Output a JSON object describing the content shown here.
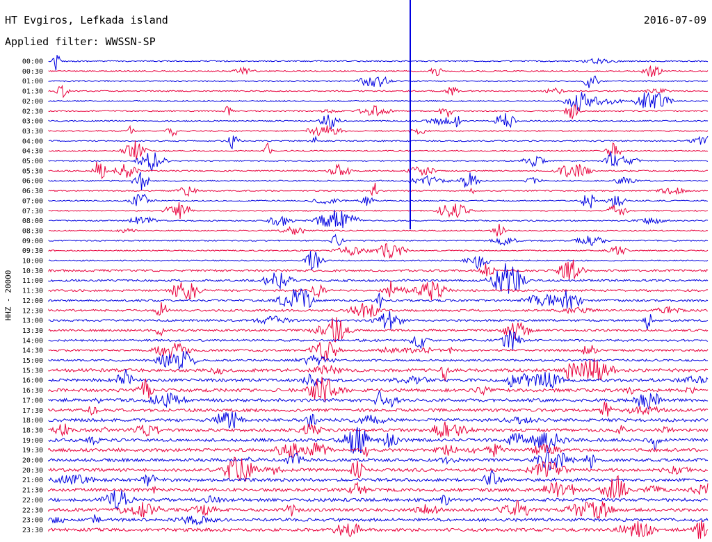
{
  "header": {
    "station": "HT Evgiros, Lefkada island",
    "date": "2016-07-09",
    "filter": "Applied filter: WWSSN-SP"
  },
  "axis": {
    "ylabel": "HHZ - 20000"
  },
  "colors": {
    "trace_a": "#0000e0",
    "trace_b": "#e8003c"
  },
  "rows": [
    "00:00",
    "00:30",
    "01:00",
    "01:30",
    "02:00",
    "02:30",
    "03:00",
    "03:30",
    "04:00",
    "04:30",
    "05:00",
    "05:30",
    "06:00",
    "06:30",
    "07:00",
    "07:30",
    "08:00",
    "08:30",
    "09:00",
    "09:30",
    "10:00",
    "10:30",
    "11:00",
    "11:30",
    "12:00",
    "12:30",
    "13:00",
    "13:30",
    "14:00",
    "14:30",
    "15:00",
    "15:30",
    "16:00",
    "16:30",
    "17:00",
    "17:30",
    "18:00",
    "18:30",
    "19:00",
    "19:30",
    "20:00",
    "20:30",
    "21:00",
    "21:30",
    "22:00",
    "22:30",
    "23:00",
    "23:30"
  ]
}
